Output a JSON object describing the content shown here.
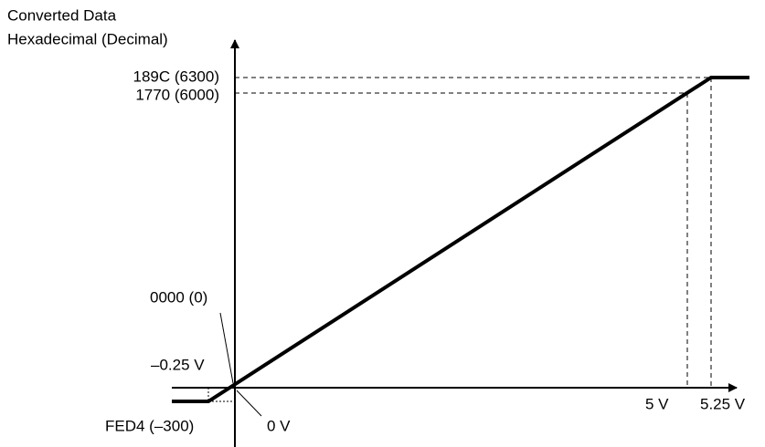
{
  "axis_title": [
    "Converted Data",
    "Hexadecimal (Decimal)"
  ],
  "y_labels": [
    "189C (6300)",
    "1770 (6000)",
    "0000 (0)",
    "FED4 (–300)"
  ],
  "x_labels": [
    "–0.25 V",
    "0 V",
    "5 V",
    "5.25 V"
  ]
}
